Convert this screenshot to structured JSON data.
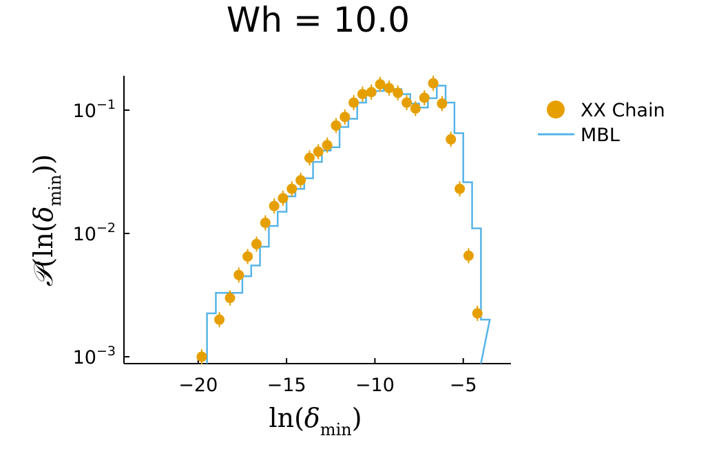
{
  "chart_data": {
    "type": "scatter",
    "title": "Wh = 10.0",
    "xlabel": "ln(δ_min)",
    "ylabel": "𝒫(ln(δ_min))",
    "xlim": [
      -24.2,
      -2.3
    ],
    "ylim": [
      0.00088,
      0.19
    ],
    "yscale": "log",
    "grid": false,
    "legend_position": "top-right outside",
    "x_ticks": [
      {
        "value": -20,
        "label": "−20"
      },
      {
        "value": -15,
        "label": "−15"
      },
      {
        "value": -10,
        "label": "−10"
      },
      {
        "value": -5,
        "label": "−5"
      }
    ],
    "y_ticks": [
      {
        "value": 0.1,
        "base": "10",
        "exp": "−1"
      },
      {
        "value": 0.01,
        "base": "10",
        "exp": "−2"
      },
      {
        "value": 0.001,
        "base": "10",
        "exp": "−3"
      }
    ],
    "series": [
      {
        "name": "XX Chain",
        "kind": "scatter",
        "color": "#E69F00",
        "x": [
          -19.8,
          -18.8,
          -18.2,
          -17.7,
          -17.2,
          -16.7,
          -16.2,
          -15.7,
          -15.2,
          -14.7,
          -14.2,
          -13.7,
          -13.2,
          -12.7,
          -12.2,
          -11.7,
          -11.2,
          -10.7,
          -10.2,
          -9.7,
          -9.2,
          -8.7,
          -8.2,
          -7.7,
          -7.2,
          -6.7,
          -6.2,
          -5.7,
          -5.2,
          -4.7,
          -4.2
        ],
        "y": [
          0.001,
          0.002,
          0.003,
          0.0046,
          0.0065,
          0.0082,
          0.0122,
          0.0167,
          0.0193,
          0.023,
          0.027,
          0.041,
          0.046,
          0.052,
          0.075,
          0.088,
          0.115,
          0.135,
          0.14,
          0.162,
          0.151,
          0.138,
          0.115,
          0.103,
          0.126,
          0.165,
          0.113,
          0.058,
          0.023,
          0.0066,
          0.00225
        ]
      },
      {
        "name": "MBL",
        "kind": "step",
        "color": "#56B4E9",
        "edges": [
          -19.5,
          -19.0,
          -18.0,
          -17.5,
          -17.0,
          -16.5,
          -16.0,
          -15.5,
          -15.0,
          -14.5,
          -14.0,
          -13.5,
          -13.0,
          -12.5,
          -12.0,
          -11.5,
          -11.0,
          -10.5,
          -10.0,
          -9.5,
          -9.0,
          -8.5,
          -8.0,
          -7.5,
          -7.0,
          -6.5,
          -6.0,
          -5.5,
          -5.0,
          -4.5,
          -4.0
        ],
        "values": [
          0.00225,
          0.0033,
          0.0033,
          0.0045,
          0.0055,
          0.0078,
          0.0115,
          0.015,
          0.02,
          0.023,
          0.028,
          0.038,
          0.047,
          0.05,
          0.073,
          0.085,
          0.115,
          0.133,
          0.143,
          0.155,
          0.148,
          0.135,
          0.113,
          0.105,
          0.125,
          0.158,
          0.115,
          0.065,
          0.026,
          0.011,
          0.002
        ]
      }
    ]
  }
}
